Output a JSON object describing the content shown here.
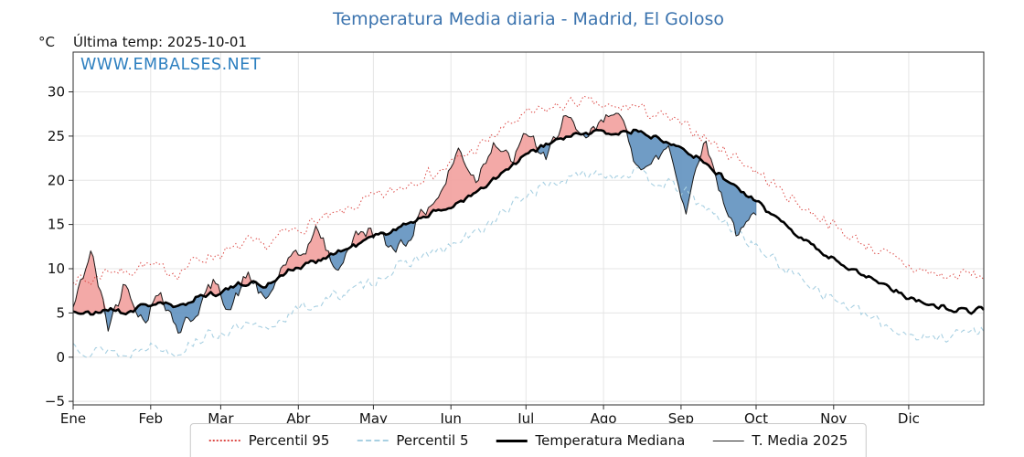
{
  "title": "Temperatura Media diaria - Madrid, El Goloso",
  "header": {
    "y_unit": "°C",
    "last_temp": "Última temp: 2025-10-01"
  },
  "watermark": "WWW.EMBALSES.NET",
  "colors": {
    "title_blue": "#3b73ae",
    "watermark_blue": "#2e80c0",
    "grid": "#e5e5e5",
    "axis": "#2b2b2b"
  },
  "chart_data": {
    "type": "line",
    "title": "Temperatura Media diaria - Madrid, El Goloso",
    "x_tick_labels": [
      "Ene",
      "Feb",
      "Mar",
      "Abr",
      "May",
      "Jun",
      "Jul",
      "Ago",
      "Sep",
      "Oct",
      "Nov",
      "Dic"
    ],
    "month_start_days": [
      1,
      32,
      60,
      91,
      121,
      152,
      182,
      213,
      244,
      274,
      305,
      335
    ],
    "x_range_days": [
      1,
      365
    ],
    "y_ticks": [
      -5,
      0,
      5,
      10,
      15,
      20,
      25,
      30
    ],
    "ylim": [
      -5.4,
      34.5
    ],
    "last_data_day": 274,
    "series": [
      {
        "name": "Percentil 95",
        "style": "dotted",
        "color": "#dd4b47",
        "days": [
          1,
          8,
          15,
          22,
          29,
          36,
          43,
          50,
          57,
          64,
          71,
          78,
          85,
          92,
          99,
          106,
          113,
          120,
          127,
          134,
          141,
          148,
          155,
          162,
          169,
          176,
          183,
          190,
          197,
          204,
          211,
          218,
          225,
          232,
          239,
          246,
          253,
          260,
          267,
          274,
          281,
          288,
          295,
          302,
          309,
          316,
          323,
          330,
          337,
          344,
          351,
          358,
          365
        ],
        "values": [
          9.0,
          8.5,
          10.0,
          9.5,
          10.5,
          10.0,
          9.5,
          11.0,
          11.5,
          12.0,
          13.0,
          12.5,
          14.0,
          14.5,
          15.5,
          16.0,
          17.0,
          18.0,
          18.5,
          19.5,
          20.5,
          21.0,
          22.5,
          23.5,
          25.0,
          26.5,
          27.5,
          28.0,
          28.5,
          29.0,
          28.5,
          28.0,
          28.5,
          27.5,
          27.0,
          26.0,
          25.0,
          23.5,
          22.5,
          21.0,
          19.5,
          18.0,
          16.5,
          15.5,
          14.0,
          13.0,
          12.0,
          11.0,
          10.0,
          9.5,
          9.0,
          9.5,
          9.0
        ]
      },
      {
        "name": "Percentil 5",
        "style": "dashed",
        "color": "#a8d0e2",
        "days": [
          1,
          8,
          15,
          22,
          29,
          36,
          43,
          50,
          57,
          64,
          71,
          78,
          85,
          92,
          99,
          106,
          113,
          120,
          127,
          134,
          141,
          148,
          155,
          162,
          169,
          176,
          183,
          190,
          197,
          204,
          211,
          218,
          225,
          232,
          239,
          246,
          253,
          260,
          267,
          274,
          281,
          288,
          295,
          302,
          309,
          316,
          323,
          330,
          337,
          344,
          351,
          358,
          365
        ],
        "values": [
          1.5,
          0.5,
          1.0,
          0.0,
          1.5,
          1.0,
          0.5,
          2.0,
          2.5,
          3.0,
          3.5,
          3.0,
          4.5,
          5.5,
          6.0,
          7.0,
          7.5,
          8.5,
          9.5,
          10.5,
          11.5,
          12.0,
          13.0,
          14.0,
          15.5,
          17.0,
          18.5,
          19.5,
          20.0,
          20.5,
          21.0,
          20.5,
          21.0,
          20.0,
          19.5,
          18.5,
          17.0,
          15.5,
          14.0,
          12.5,
          11.0,
          9.5,
          8.5,
          7.0,
          6.0,
          5.0,
          4.0,
          3.0,
          2.5,
          2.0,
          2.5,
          3.0,
          2.8
        ]
      },
      {
        "name": "Temperatura Mediana",
        "style": "solid-thick",
        "color": "#000000",
        "days": [
          1,
          8,
          15,
          22,
          29,
          36,
          43,
          50,
          57,
          64,
          71,
          78,
          85,
          92,
          99,
          106,
          113,
          120,
          127,
          134,
          141,
          148,
          155,
          162,
          169,
          176,
          183,
          190,
          197,
          204,
          211,
          218,
          225,
          232,
          239,
          246,
          253,
          260,
          267,
          274,
          281,
          288,
          295,
          302,
          309,
          316,
          323,
          330,
          337,
          344,
          351,
          358,
          365
        ],
        "values": [
          5.2,
          4.8,
          5.5,
          5.0,
          5.8,
          6.2,
          5.5,
          6.8,
          7.2,
          7.8,
          8.5,
          8.0,
          9.5,
          10.2,
          11.0,
          11.8,
          12.5,
          13.5,
          14.2,
          15.0,
          16.0,
          16.5,
          17.5,
          18.5,
          20.0,
          21.5,
          23.0,
          24.0,
          24.8,
          25.2,
          25.5,
          25.3,
          25.6,
          25.0,
          24.5,
          23.5,
          22.0,
          20.5,
          19.0,
          17.5,
          16.0,
          14.5,
          13.0,
          11.5,
          10.5,
          9.5,
          8.5,
          7.5,
          6.5,
          6.0,
          5.5,
          5.2,
          5.5
        ]
      },
      {
        "name": "T. Media 2025",
        "style": "solid-thin",
        "color": "#1a1a1a",
        "days": [
          1,
          8,
          15,
          22,
          29,
          36,
          43,
          50,
          57,
          64,
          71,
          78,
          85,
          92,
          99,
          106,
          113,
          120,
          127,
          134,
          141,
          148,
          155,
          162,
          169,
          176,
          183,
          190,
          197,
          204,
          211,
          218,
          225,
          232,
          239,
          246,
          253,
          260,
          267,
          274
        ],
        "values": [
          5.5,
          12.0,
          3.5,
          8.5,
          4.0,
          7.5,
          3.0,
          5.0,
          8.5,
          5.5,
          9.5,
          6.0,
          10.5,
          11.5,
          14.5,
          9.5,
          13.5,
          14.5,
          12.5,
          13.0,
          16.5,
          18.5,
          23.5,
          20.0,
          24.5,
          22.0,
          25.5,
          22.0,
          27.5,
          24.5,
          26.0,
          28.5,
          22.5,
          21.5,
          24.0,
          16.5,
          25.0,
          18.5,
          13.5,
          16.5
        ]
      }
    ],
    "fill_between": {
      "reference": "Temperatura Mediana",
      "compare": "T. Media 2025",
      "above_median_color": "#f2a09d",
      "below_median_color": "#6191bf"
    }
  },
  "legend": {
    "items": [
      "Percentil 95",
      "Percentil 5",
      "Temperatura Mediana",
      "T. Media 2025"
    ]
  }
}
